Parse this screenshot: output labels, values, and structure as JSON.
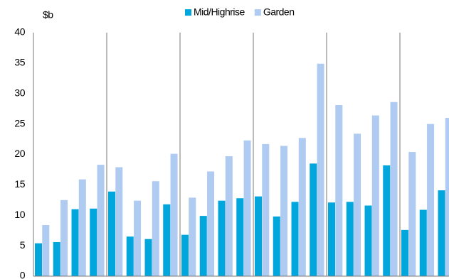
{
  "chart_data": {
    "type": "bar",
    "y_label": "$b",
    "categories": [
      null,
      null,
      null,
      null,
      null,
      null,
      null,
      null,
      null,
      null,
      null,
      null,
      null,
      null,
      null,
      null,
      null,
      null,
      null,
      null,
      null,
      null,
      null
    ],
    "series": [
      {
        "name": "Mid/Highrise",
        "color": "#00a6dc",
        "values": [
          5.4,
          5.6,
          11,
          11.1,
          13.9,
          6.5,
          6.1,
          11.8,
          6.8,
          9.9,
          12.4,
          12.8,
          13.1,
          9.8,
          12.2,
          18.5,
          12.1,
          12.2,
          11.6,
          18.2,
          7.6,
          10.9,
          14.1
        ]
      },
      {
        "name": "Garden",
        "color": "#afcbf1",
        "values": [
          8.4,
          12.5,
          15.9,
          18.3,
          17.9,
          12.4,
          15.6,
          20.1,
          12.9,
          17.2,
          19.7,
          22.3,
          21.7,
          21.4,
          22.7,
          34.9,
          28.1,
          23.4,
          26.4,
          28.6,
          20.4,
          25,
          26
        ]
      }
    ],
    "ylim": [
      0,
      40
    ],
    "yticks": [
      0,
      5,
      10,
      15,
      20,
      25,
      30,
      35,
      40
    ],
    "grid": false,
    "legend": "top"
  }
}
